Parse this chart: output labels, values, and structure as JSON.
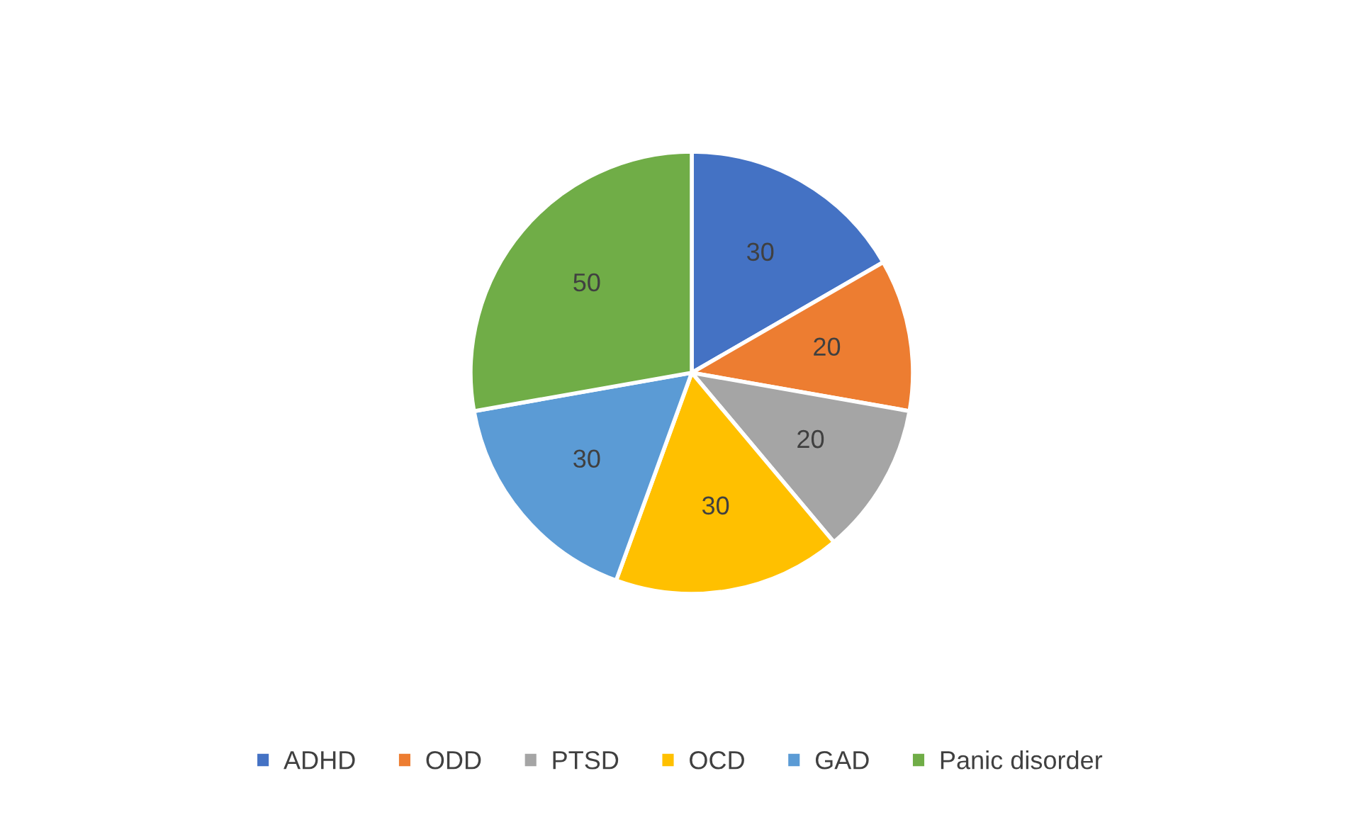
{
  "chart_data": {
    "type": "pie",
    "categories": [
      "ADHD",
      "ODD",
      "PTSD",
      "OCD",
      "GAD",
      "Panic disorder"
    ],
    "values": [
      30,
      20,
      20,
      30,
      30,
      50
    ],
    "colors": [
      "#4472c4",
      "#ed7d31",
      "#a5a5a5",
      "#ffc000",
      "#5b9bd5",
      "#70ad47"
    ],
    "data_labels": true,
    "legend": "bottom"
  }
}
